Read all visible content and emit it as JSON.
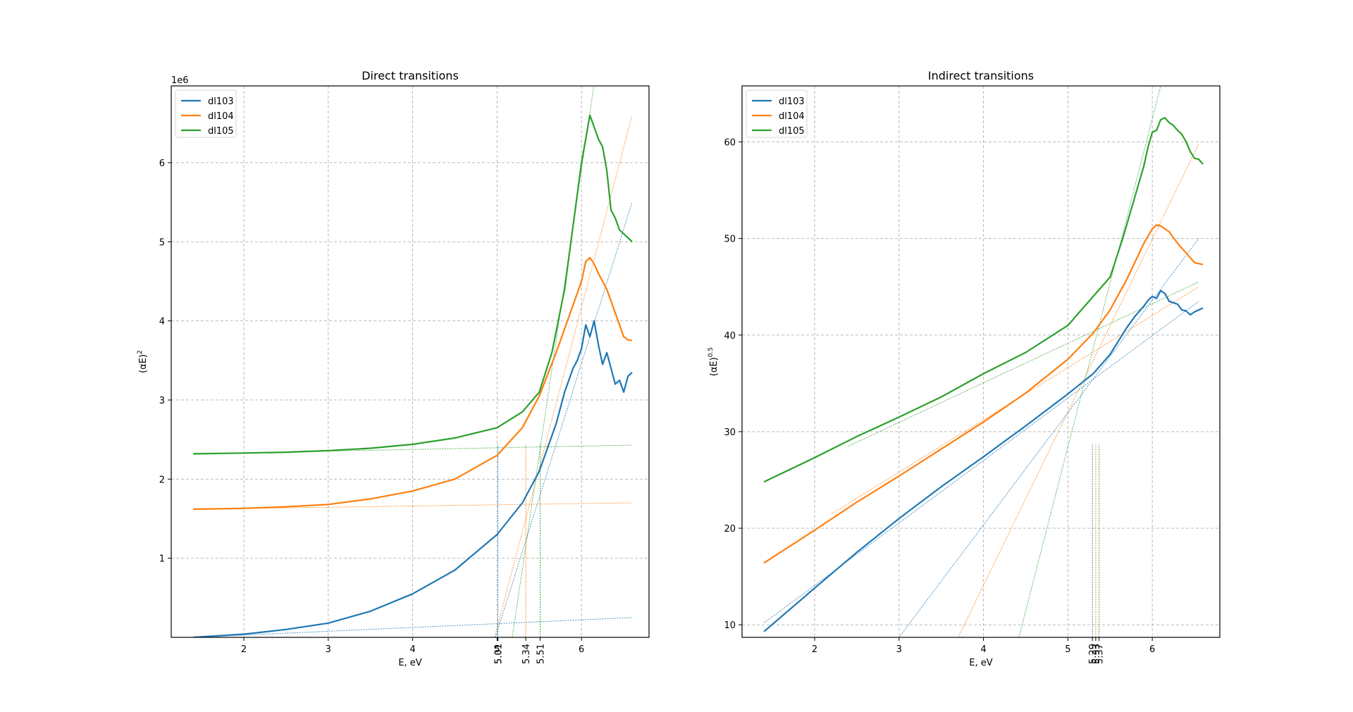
{
  "colors": {
    "dl103": "#1f77b4",
    "dl104": "#ff7f0e",
    "dl105": "#2ca02c",
    "grid": "#b0b0b0",
    "axes": "#000000"
  },
  "chart_data": [
    {
      "type": "line",
      "title": "Direct transitions",
      "xlabel": "E, eV",
      "ylabel": "(αE)^2",
      "ylabel_base": "(αE)",
      "ylabel_exp": "2",
      "y_offset_text": "1e6",
      "xlim": [
        1.14,
        6.8
      ],
      "ylim": [
        0.0,
        6.97
      ],
      "grid": true,
      "legend_position": "upper left",
      "legend": [
        "dl103",
        "dl104",
        "dl105"
      ],
      "xticks": [
        2,
        3,
        4,
        5,
        6
      ],
      "yticks": [
        1,
        2,
        3,
        4,
        5,
        6
      ],
      "extra_xticks": [
        {
          "value": 5.01,
          "label": "5.01"
        },
        {
          "value": 5.01,
          "label": "5.01"
        },
        {
          "value": 5.34,
          "label": "5.34"
        },
        {
          "value": 5.51,
          "label": "5.51"
        }
      ],
      "series": [
        {
          "name": "dl103",
          "x": [
            1.4,
            2.0,
            2.5,
            3.0,
            3.5,
            4.0,
            4.5,
            5.0,
            5.3,
            5.5,
            5.7,
            5.8,
            5.9,
            5.95,
            6.0,
            6.05,
            6.1,
            6.15,
            6.2,
            6.25,
            6.3,
            6.35,
            6.4,
            6.45,
            6.5,
            6.55,
            6.6
          ],
          "y": [
            0.0,
            0.04,
            0.1,
            0.18,
            0.33,
            0.55,
            0.85,
            1.3,
            1.7,
            2.1,
            2.7,
            3.1,
            3.4,
            3.5,
            3.65,
            3.95,
            3.8,
            4.0,
            3.7,
            3.45,
            3.6,
            3.4,
            3.2,
            3.25,
            3.1,
            3.3,
            3.35
          ]
        },
        {
          "name": "dl104",
          "x": [
            1.4,
            2.0,
            2.5,
            3.0,
            3.5,
            4.0,
            4.5,
            5.0,
            5.3,
            5.5,
            5.7,
            5.9,
            6.0,
            6.05,
            6.1,
            6.15,
            6.2,
            6.3,
            6.4,
            6.5,
            6.55,
            6.6
          ],
          "y": [
            1.62,
            1.63,
            1.65,
            1.68,
            1.75,
            1.85,
            2.0,
            2.3,
            2.65,
            3.05,
            3.6,
            4.2,
            4.5,
            4.75,
            4.8,
            4.72,
            4.6,
            4.4,
            4.1,
            3.8,
            3.76,
            3.75
          ]
        },
        {
          "name": "dl105",
          "x": [
            1.4,
            2.0,
            2.5,
            3.0,
            3.5,
            4.0,
            4.5,
            5.0,
            5.3,
            5.5,
            5.65,
            5.8,
            5.9,
            5.95,
            6.0,
            6.05,
            6.1,
            6.15,
            6.2,
            6.25,
            6.3,
            6.35,
            6.4,
            6.45,
            6.5,
            6.55,
            6.6
          ],
          "y": [
            2.32,
            2.33,
            2.34,
            2.36,
            2.39,
            2.44,
            2.52,
            2.65,
            2.85,
            3.1,
            3.6,
            4.4,
            5.2,
            5.6,
            6.0,
            6.3,
            6.6,
            6.45,
            6.3,
            6.2,
            5.9,
            5.4,
            5.3,
            5.15,
            5.1,
            5.05,
            5.0
          ]
        }
      ],
      "fit_lines": [
        {
          "series": "dl103",
          "x": [
            1.4,
            6.6
          ],
          "y": [
            0.0,
            0.25
          ]
        },
        {
          "series": "dl104",
          "x": [
            1.4,
            6.6
          ],
          "y": [
            1.62,
            1.7
          ]
        },
        {
          "series": "dl105",
          "x": [
            1.4,
            6.6
          ],
          "y": [
            2.32,
            2.43
          ]
        },
        {
          "series": "dl103",
          "x": [
            4.98,
            6.6
          ],
          "y": [
            0.0,
            5.5
          ]
        },
        {
          "series": "dl104",
          "x": [
            4.97,
            6.6
          ],
          "y": [
            0.0,
            6.6
          ]
        },
        {
          "series": "dl105",
          "x": [
            5.18,
            6.15
          ],
          "y": [
            0.0,
            7.0
          ]
        }
      ],
      "vlines": [
        {
          "series": "dl103",
          "x": 5.01
        },
        {
          "series": "dl104",
          "x": 5.34
        },
        {
          "series": "dl105",
          "x": 5.51
        }
      ]
    },
    {
      "type": "line",
      "title": "Indirect transitions",
      "xlabel": "E, eV",
      "ylabel": "(αE)^0.5",
      "ylabel_base": "(αE)",
      "ylabel_exp": "0.5",
      "xlim": [
        1.14,
        6.8
      ],
      "ylim": [
        8.7,
        65.8
      ],
      "grid": true,
      "legend_position": "upper left",
      "legend": [
        "dl103",
        "dl104",
        "dl105"
      ],
      "xticks": [
        2,
        3,
        4,
        5,
        6
      ],
      "yticks": [
        10,
        20,
        30,
        40,
        50,
        60
      ],
      "extra_xticks": [
        {
          "value": 5.29,
          "label": "5.29"
        },
        {
          "value": 5.33,
          "label": "5.33"
        },
        {
          "value": 5.37,
          "label": "5.37"
        }
      ],
      "series": [
        {
          "name": "dl103",
          "x": [
            1.4,
            2.0,
            2.5,
            3.0,
            3.5,
            4.0,
            4.5,
            5.0,
            5.3,
            5.5,
            5.7,
            5.8,
            5.9,
            5.95,
            6.0,
            6.05,
            6.1,
            6.15,
            6.2,
            6.3,
            6.35,
            6.4,
            6.45,
            6.5,
            6.55,
            6.6
          ],
          "y": [
            9.3,
            13.8,
            17.5,
            21.0,
            24.3,
            27.4,
            30.6,
            33.9,
            36.0,
            38.0,
            40.8,
            42.0,
            43.0,
            43.6,
            44.0,
            43.8,
            44.6,
            44.3,
            43.5,
            43.2,
            42.6,
            42.5,
            42.1,
            42.4,
            42.6,
            42.8
          ]
        },
        {
          "name": "dl104",
          "x": [
            1.4,
            2.0,
            2.5,
            3.0,
            3.5,
            4.0,
            4.5,
            5.0,
            5.3,
            5.5,
            5.7,
            5.9,
            6.0,
            6.05,
            6.1,
            6.15,
            6.2,
            6.3,
            6.4,
            6.5,
            6.55,
            6.6
          ],
          "y": [
            16.4,
            19.8,
            22.7,
            25.4,
            28.2,
            31.0,
            34.0,
            37.5,
            40.2,
            42.6,
            45.8,
            49.5,
            51.0,
            51.4,
            51.3,
            51.0,
            50.7,
            49.5,
            48.5,
            47.5,
            47.4,
            47.3
          ]
        },
        {
          "name": "dl105",
          "x": [
            1.4,
            2.0,
            2.5,
            3.0,
            3.5,
            4.0,
            4.5,
            5.0,
            5.3,
            5.5,
            5.65,
            5.8,
            5.9,
            5.95,
            6.0,
            6.05,
            6.1,
            6.15,
            6.2,
            6.25,
            6.3,
            6.35,
            6.4,
            6.45,
            6.5,
            6.55,
            6.6
          ],
          "y": [
            24.8,
            27.3,
            29.5,
            31.5,
            33.6,
            36.0,
            38.2,
            41.0,
            44.0,
            46.0,
            50.0,
            54.5,
            57.5,
            59.5,
            61.0,
            61.2,
            62.3,
            62.5,
            62.0,
            61.7,
            61.2,
            60.8,
            60.0,
            59.0,
            58.3,
            58.2,
            57.7
          ]
        }
      ],
      "fit_lines": [
        {
          "series": "dl103",
          "x": [
            1.4,
            6.55
          ],
          "y": [
            10.2,
            43.5
          ]
        },
        {
          "series": "dl104",
          "x": [
            2.2,
            6.55
          ],
          "y": [
            21.5,
            45.0
          ]
        },
        {
          "series": "dl105",
          "x": [
            2.4,
            6.55
          ],
          "y": [
            28.5,
            45.5
          ]
        },
        {
          "series": "dl103",
          "x": [
            3.0,
            6.55
          ],
          "y": [
            8.7,
            50.0
          ]
        },
        {
          "series": "dl104",
          "x": [
            3.7,
            6.55
          ],
          "y": [
            8.7,
            59.8
          ]
        },
        {
          "series": "dl105",
          "x": [
            4.42,
            6.1
          ],
          "y": [
            8.7,
            65.8
          ]
        }
      ],
      "vlines": [
        {
          "series": "dl103",
          "x": 5.29
        },
        {
          "series": "dl104",
          "x": 5.33
        },
        {
          "series": "dl105",
          "x": 5.37
        }
      ]
    }
  ]
}
